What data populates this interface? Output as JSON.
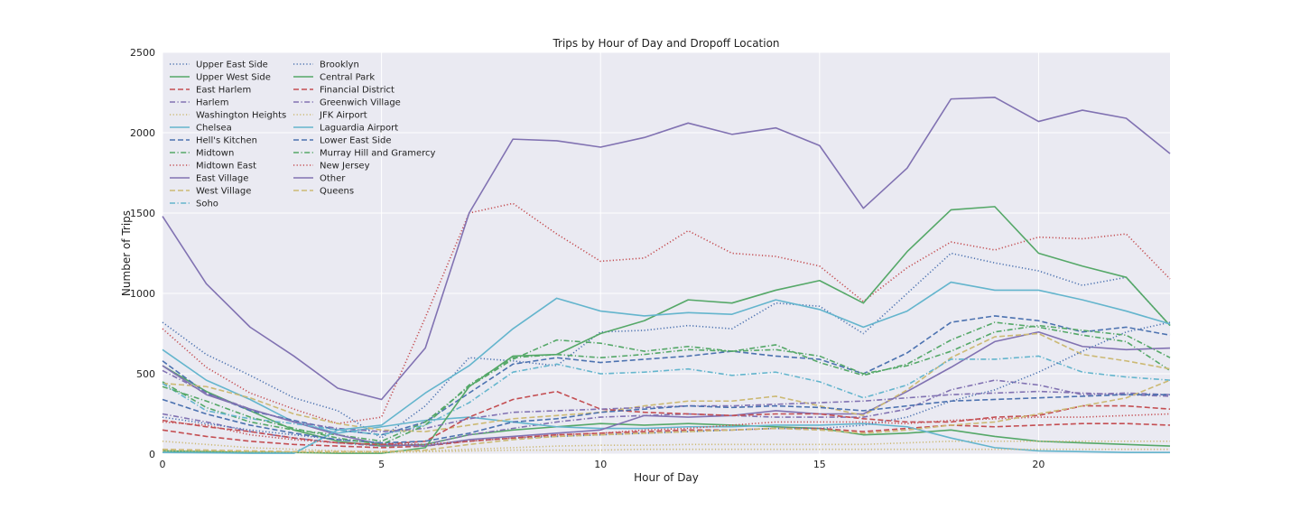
{
  "chart_data": {
    "type": "line",
    "title": "Trips by Hour of Day and Dropoff Location",
    "xlabel": "Hour of Day",
    "ylabel": "Number of Trips",
    "xlim": [
      0,
      23
    ],
    "ylim": [
      0,
      2500
    ],
    "xticks": [
      0,
      5,
      10,
      15,
      20
    ],
    "yticks": [
      0,
      500,
      1000,
      1500,
      2000,
      2500
    ],
    "grid": true,
    "legend_position": "top-left",
    "x": [
      0,
      1,
      2,
      3,
      4,
      5,
      6,
      7,
      8,
      9,
      10,
      11,
      12,
      13,
      14,
      15,
      16,
      17,
      18,
      19,
      20,
      21,
      22,
      23
    ],
    "series": [
      {
        "name": "Upper East Side",
        "color": "#4c72b0",
        "style": "dotted",
        "values": [
          820,
          620,
          490,
          350,
          270,
          100,
          300,
          600,
          580,
          550,
          760,
          770,
          800,
          780,
          940,
          920,
          750,
          1000,
          1250,
          1190,
          1140,
          1050,
          1100,
          800
        ]
      },
      {
        "name": "Upper West Side",
        "color": "#55a868",
        "style": "solid",
        "values": [
          550,
          390,
          270,
          150,
          80,
          50,
          60,
          120,
          150,
          170,
          190,
          180,
          190,
          180,
          170,
          160,
          120,
          130,
          150,
          110,
          80,
          70,
          60,
          50
        ]
      },
      {
        "name": "East Harlem",
        "color": "#c44e52",
        "style": "dashed",
        "values": [
          150,
          110,
          80,
          60,
          50,
          40,
          50,
          80,
          100,
          120,
          130,
          140,
          150,
          150,
          160,
          160,
          140,
          160,
          180,
          170,
          180,
          190,
          190,
          180
        ]
      },
      {
        "name": "Harlem",
        "color": "#8172b2",
        "style": "dashdot",
        "values": [
          250,
          200,
          140,
          100,
          70,
          50,
          60,
          120,
          160,
          200,
          230,
          240,
          250,
          240,
          230,
          230,
          230,
          280,
          400,
          460,
          430,
          370,
          380,
          370
        ]
      },
      {
        "name": "Washington Heights",
        "color": "#ccb974",
        "style": "dotted",
        "values": [
          80,
          60,
          40,
          30,
          20,
          15,
          20,
          30,
          40,
          50,
          55,
          55,
          60,
          60,
          60,
          60,
          60,
          70,
          80,
          80,
          80,
          80,
          80,
          80
        ]
      },
      {
        "name": "Chelsea",
        "color": "#64b5cd",
        "style": "solid",
        "values": [
          650,
          460,
          340,
          200,
          130,
          170,
          210,
          230,
          200,
          170,
          160,
          160,
          170,
          170,
          180,
          180,
          190,
          170,
          100,
          40,
          20,
          15,
          10,
          10
        ]
      },
      {
        "name": "Hell's Kitchen",
        "color": "#4c72b0",
        "style": "dashed",
        "values": [
          580,
          380,
          270,
          210,
          150,
          120,
          200,
          380,
          560,
          600,
          570,
          590,
          610,
          640,
          610,
          590,
          500,
          630,
          820,
          860,
          830,
          760,
          790,
          740
        ]
      },
      {
        "name": "Midtown",
        "color": "#55a868",
        "style": "dashdot",
        "values": [
          450,
          290,
          200,
          150,
          120,
          80,
          200,
          420,
          590,
          710,
          690,
          640,
          670,
          640,
          680,
          570,
          490,
          560,
          710,
          820,
          790,
          740,
          700,
          520
        ]
      },
      {
        "name": "Midtown East",
        "color": "#c44e52",
        "style": "dotted",
        "values": [
          780,
          540,
          380,
          280,
          190,
          230,
          850,
          1500,
          1560,
          1370,
          1200,
          1220,
          1390,
          1250,
          1230,
          1170,
          950,
          1160,
          1320,
          1270,
          1350,
          1340,
          1370,
          1090
        ]
      },
      {
        "name": "East Village",
        "color": "#8172b2",
        "style": "solid",
        "values": [
          550,
          370,
          280,
          200,
          120,
          60,
          50,
          90,
          110,
          130,
          150,
          240,
          230,
          240,
          270,
          250,
          250,
          390,
          540,
          700,
          760,
          670,
          650,
          660
        ]
      },
      {
        "name": "West Village",
        "color": "#ccb974",
        "style": "dashed",
        "values": [
          440,
          420,
          350,
          250,
          190,
          150,
          140,
          180,
          220,
          240,
          260,
          300,
          330,
          330,
          360,
          300,
          240,
          400,
          600,
          730,
          750,
          620,
          580,
          530
        ]
      },
      {
        "name": "Soho",
        "color": "#64b5cd",
        "style": "dashdot",
        "values": [
          440,
          270,
          220,
          190,
          150,
          120,
          180,
          320,
          510,
          560,
          500,
          510,
          530,
          490,
          510,
          450,
          350,
          430,
          590,
          590,
          610,
          510,
          480,
          460
        ]
      },
      {
        "name": "Brooklyn",
        "color": "#4c72b0",
        "style": "dotted",
        "values": [
          230,
          190,
          150,
          120,
          90,
          70,
          60,
          80,
          100,
          110,
          120,
          130,
          140,
          150,
          160,
          160,
          180,
          230,
          330,
          400,
          510,
          640,
          760,
          820
        ]
      },
      {
        "name": "Central Park",
        "color": "#55a868",
        "style": "solid",
        "values": [
          20,
          15,
          10,
          10,
          5,
          5,
          40,
          420,
          610,
          620,
          750,
          830,
          960,
          940,
          1020,
          1080,
          940,
          1260,
          1520,
          1540,
          1250,
          1170,
          1100,
          800
        ]
      },
      {
        "name": "Financial District",
        "color": "#c44e52",
        "style": "dashed",
        "values": [
          210,
          170,
          140,
          100,
          70,
          60,
          80,
          230,
          340,
          390,
          280,
          260,
          250,
          240,
          250,
          250,
          220,
          200,
          200,
          230,
          240,
          300,
          300,
          280
        ]
      },
      {
        "name": "Greenwich Village",
        "color": "#8172b2",
        "style": "dashdot",
        "values": [
          520,
          380,
          280,
          200,
          160,
          140,
          160,
          220,
          260,
          270,
          280,
          290,
          300,
          300,
          310,
          320,
          330,
          350,
          370,
          380,
          390,
          380,
          370,
          360
        ]
      },
      {
        "name": "JFK Airport",
        "color": "#ccb974",
        "style": "dotted",
        "values": [
          20,
          20,
          15,
          10,
          10,
          10,
          15,
          20,
          25,
          25,
          25,
          30,
          30,
          30,
          30,
          30,
          30,
          30,
          30,
          30,
          30,
          30,
          30,
          30
        ]
      },
      {
        "name": "Laguardia Airport",
        "color": "#64b5cd",
        "style": "solid",
        "values": [
          10,
          8,
          5,
          5,
          150,
          180,
          380,
          550,
          780,
          970,
          890,
          860,
          880,
          870,
          960,
          900,
          790,
          890,
          1070,
          1020,
          1020,
          960,
          890,
          810
        ]
      },
      {
        "name": "Lower East Side",
        "color": "#4c72b0",
        "style": "dashed",
        "values": [
          340,
          250,
          180,
          130,
          90,
          70,
          80,
          130,
          200,
          220,
          260,
          280,
          300,
          290,
          300,
          290,
          270,
          300,
          330,
          340,
          350,
          360,
          370,
          370
        ]
      },
      {
        "name": "Murray Hill and Gramercy",
        "color": "#55a868",
        "style": "dashdot",
        "values": [
          420,
          330,
          230,
          160,
          100,
          60,
          180,
          430,
          600,
          620,
          600,
          620,
          650,
          640,
          650,
          610,
          500,
          550,
          640,
          760,
          800,
          770,
          740,
          600
        ]
      },
      {
        "name": "New Jersey",
        "color": "#c44e52",
        "style": "dotted",
        "values": [
          200,
          180,
          120,
          90,
          70,
          60,
          60,
          80,
          100,
          120,
          130,
          150,
          160,
          180,
          200,
          200,
          200,
          190,
          210,
          220,
          230,
          230,
          240,
          250
        ]
      },
      {
        "name": "Other",
        "color": "#8172b2",
        "style": "solid",
        "values": [
          1480,
          1060,
          790,
          610,
          410,
          340,
          660,
          1500,
          1960,
          1950,
          1910,
          1970,
          2060,
          1990,
          2030,
          1920,
          1530,
          1780,
          2210,
          2220,
          2070,
          2140,
          2090,
          1870
        ]
      },
      {
        "name": "Queens",
        "color": "#ccb974",
        "style": "dashed",
        "values": [
          30,
          25,
          20,
          15,
          15,
          15,
          25,
          60,
          90,
          110,
          120,
          130,
          140,
          150,
          160,
          150,
          130,
          150,
          180,
          200,
          250,
          300,
          350,
          460
        ]
      }
    ]
  }
}
